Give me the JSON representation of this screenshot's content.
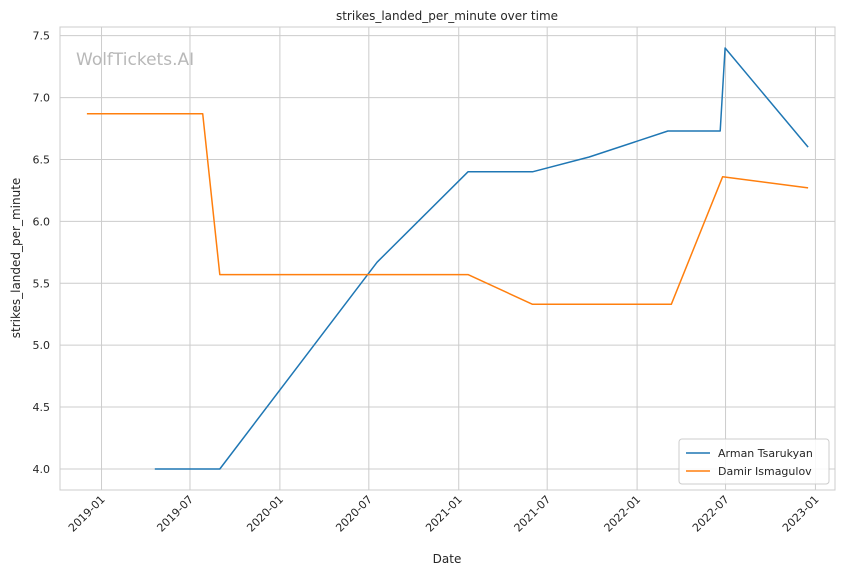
{
  "chart_data": {
    "type": "line",
    "title": "strikes_landed_per_minute over time",
    "xlabel": "Date",
    "ylabel": "strikes_landed_per_minute",
    "watermark": "WolfTickets.AI",
    "grid": true,
    "legend_position": "bottom-right",
    "xlim": [
      "2018-10-08",
      "2023-02-10"
    ],
    "ylim": [
      3.83,
      7.57
    ],
    "x_ticks": [
      "2019-01",
      "2019-07",
      "2020-01",
      "2020-07",
      "2021-01",
      "2021-07",
      "2022-01",
      "2022-07",
      "2023-01"
    ],
    "y_ticks": [
      4.0,
      4.5,
      5.0,
      5.5,
      6.0,
      6.5,
      7.0,
      7.5
    ],
    "series": [
      {
        "name": "Arman Tsarukyan",
        "color": "#1f77b4",
        "points": [
          {
            "x": "2019-04-20",
            "y": 4.0
          },
          {
            "x": "2019-08-31",
            "y": 4.0
          },
          {
            "x": "2020-07-18",
            "y": 5.67
          },
          {
            "x": "2021-01-20",
            "y": 6.4
          },
          {
            "x": "2021-06-01",
            "y": 6.4
          },
          {
            "x": "2021-09-25",
            "y": 6.52
          },
          {
            "x": "2022-03-05",
            "y": 6.73
          },
          {
            "x": "2022-06-20",
            "y": 6.73
          },
          {
            "x": "2022-06-30",
            "y": 7.4
          },
          {
            "x": "2022-12-17",
            "y": 6.6
          }
        ]
      },
      {
        "name": "Damir Ismagulov",
        "color": "#ff7f0e",
        "points": [
          {
            "x": "2018-12-02",
            "y": 6.87
          },
          {
            "x": "2019-07-27",
            "y": 6.87
          },
          {
            "x": "2019-08-31",
            "y": 5.57
          },
          {
            "x": "2021-01-20",
            "y": 5.57
          },
          {
            "x": "2021-06-01",
            "y": 5.33
          },
          {
            "x": "2022-03-12",
            "y": 5.33
          },
          {
            "x": "2022-06-25",
            "y": 6.36
          },
          {
            "x": "2022-12-17",
            "y": 6.27
          }
        ]
      }
    ]
  }
}
